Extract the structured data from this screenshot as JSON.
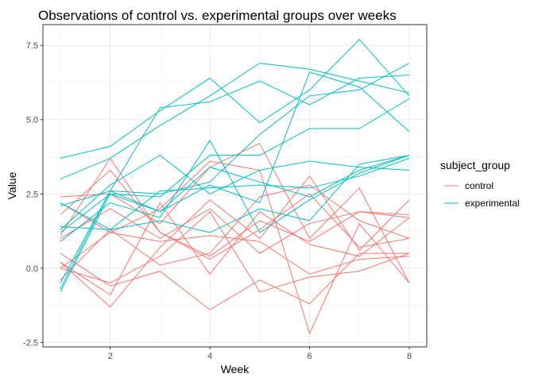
{
  "chart_data": {
    "type": "line",
    "title": "Observations of control vs. experimental groups over weeks",
    "xlabel": "Week",
    "ylabel": "Value",
    "xlim": [
      0.65,
      8.35
    ],
    "ylim": [
      -2.65,
      8.2
    ],
    "x_ticks": [
      2,
      4,
      6,
      8
    ],
    "x_tick_labels": [
      "2",
      "4",
      "6",
      "8"
    ],
    "y_ticks": [
      -2.5,
      0,
      2.5,
      5,
      7.5
    ],
    "y_tick_labels": [
      "-2.5",
      "0.0",
      "2.5",
      "5.0",
      "7.5"
    ],
    "grid": true,
    "legend": {
      "title": "subject_group",
      "position": "right",
      "entries": [
        {
          "label": "control",
          "color": "#F8766D"
        },
        {
          "label": "experimental",
          "color": "#00BFC4"
        }
      ]
    },
    "x": [
      1,
      2,
      3,
      4,
      5,
      6,
      7,
      8
    ],
    "series": [
      {
        "group": "control",
        "color": "#F8766D",
        "values": [
          0.2,
          -1.3,
          0.7,
          2.3,
          1.0,
          3.1,
          0.6,
          2.3
        ]
      },
      {
        "group": "control",
        "color": "#F8766D",
        "values": [
          1.1,
          3.7,
          1.2,
          0.3,
          1.3,
          2.5,
          0.7,
          1.0
        ]
      },
      {
        "group": "control",
        "color": "#F8766D",
        "values": [
          2.4,
          2.5,
          1.5,
          3.4,
          4.2,
          1.0,
          2.7,
          -0.5
        ]
      },
      {
        "group": "control",
        "color": "#F8766D",
        "values": [
          0.0,
          1.2,
          2.0,
          3.6,
          3.3,
          -2.2,
          1.5,
          -0.5
        ]
      },
      {
        "group": "control",
        "color": "#F8766D",
        "values": [
          1.8,
          3.3,
          1.2,
          0.4,
          1.6,
          0.9,
          1.9,
          1.7
        ]
      },
      {
        "group": "control",
        "color": "#F8766D",
        "values": [
          0.5,
          -0.6,
          -0.1,
          -1.4,
          -0.4,
          -1.2,
          0.5,
          0.5
        ]
      },
      {
        "group": "control",
        "color": "#F8766D",
        "values": [
          -0.4,
          1.3,
          0.1,
          0.5,
          2.4,
          2.8,
          1.6,
          1.0
        ]
      },
      {
        "group": "control",
        "color": "#F8766D",
        "values": [
          1.0,
          2.0,
          1.0,
          2.0,
          0.5,
          1.5,
          1.9,
          1.8
        ]
      },
      {
        "group": "control",
        "color": "#F8766D",
        "values": [
          2.2,
          1.2,
          0.9,
          1.1,
          0.9,
          -0.2,
          0.3,
          0.4
        ]
      },
      {
        "group": "control",
        "color": "#F8766D",
        "values": [
          0.2,
          -0.9,
          2.2,
          -0.2,
          1.9,
          0.8,
          0.4,
          1.7
        ]
      },
      {
        "group": "control",
        "color": "#F8766D",
        "values": [
          0.0,
          -0.5,
          0.4,
          1.9,
          -0.8,
          -0.3,
          -0.1,
          0.5
        ]
      },
      {
        "group": "experimental",
        "color": "#00BFC4",
        "values": [
          3.7,
          4.1,
          5.3,
          6.4,
          4.9,
          6.0,
          7.7,
          5.8
        ]
      },
      {
        "group": "experimental",
        "color": "#00BFC4",
        "values": [
          3.0,
          3.7,
          4.8,
          5.8,
          6.9,
          6.7,
          6.3,
          5.9
        ]
      },
      {
        "group": "experimental",
        "color": "#00BFC4",
        "values": [
          -0.5,
          2.6,
          5.4,
          5.6,
          6.3,
          5.5,
          6.4,
          6.5
        ]
      },
      {
        "group": "experimental",
        "color": "#00BFC4",
        "values": [
          2.1,
          2.6,
          2.5,
          2.9,
          4.5,
          5.8,
          6.0,
          6.9
        ]
      },
      {
        "group": "experimental",
        "color": "#00BFC4",
        "values": [
          1.2,
          2.5,
          2.4,
          3.8,
          3.8,
          4.7,
          4.7,
          5.7
        ]
      },
      {
        "group": "experimental",
        "color": "#00BFC4",
        "values": [
          1.3,
          2.8,
          3.8,
          2.5,
          3.3,
          3.6,
          3.4,
          3.3
        ]
      },
      {
        "group": "experimental",
        "color": "#00BFC4",
        "values": [
          -0.7,
          2.6,
          1.9,
          2.8,
          2.2,
          6.6,
          6.1,
          4.6
        ]
      },
      {
        "group": "experimental",
        "color": "#00BFC4",
        "values": [
          0.9,
          2.2,
          1.7,
          4.3,
          1.2,
          2.3,
          3.2,
          3.8
        ]
      },
      {
        "group": "experimental",
        "color": "#00BFC4",
        "values": [
          2.2,
          1.3,
          2.6,
          2.7,
          2.8,
          2.7,
          3.1,
          3.7
        ]
      },
      {
        "group": "experimental",
        "color": "#00BFC4",
        "values": [
          1.4,
          1.3,
          1.6,
          1.2,
          2.0,
          1.6,
          3.5,
          3.8
        ]
      },
      {
        "group": "experimental",
        "color": "#00BFC4",
        "values": [
          -0.8,
          2.5,
          1.9,
          3.4,
          2.9,
          2.4,
          3.3,
          3.8
        ]
      }
    ]
  }
}
